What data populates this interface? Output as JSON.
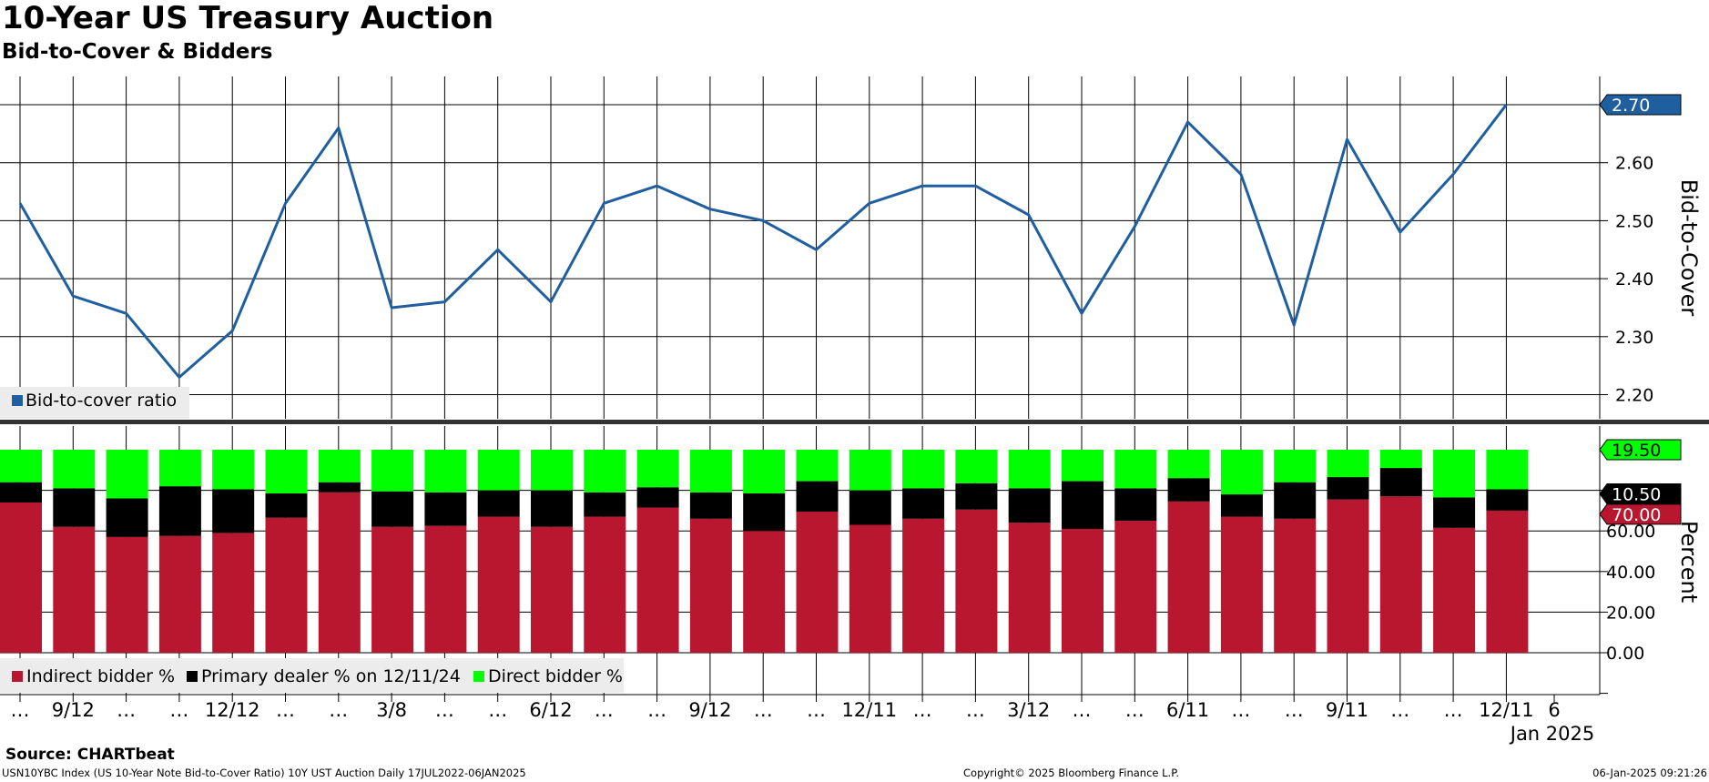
{
  "title": "10-Year US Treasury Auction",
  "subtitle": "Bid-to-Cover & Bidders",
  "source": "Source: CHARTbeat",
  "footer": {
    "left": "USN10YBC Index (US 10-Year Note Bid-to-Cover Ratio) 10Y UST Auction  Daily 17JUL2022-06JAN2025",
    "center": "Copyright© 2025 Bloomberg Finance L.P.",
    "right": "06-Jan-2025 09:21:26"
  },
  "colors": {
    "line": "#1f5fa0",
    "indirect": "#b8172f",
    "primary": "#000000",
    "direct": "#00ff00",
    "grid": "#000000",
    "legend_bg": "#ececec"
  },
  "chart_data": [
    {
      "type": "line",
      "ylabel": "Bid-to-Cover",
      "ylim": [
        2.15,
        2.72
      ],
      "yticks": [
        "2.20",
        "2.30",
        "2.40",
        "2.50",
        "2.60"
      ],
      "grid": true,
      "legend": "bottom-left",
      "series": [
        {
          "name": "Bid-to-cover ratio",
          "values": [
            2.53,
            2.37,
            2.34,
            2.23,
            2.31,
            2.53,
            2.66,
            2.35,
            2.36,
            2.45,
            2.36,
            2.53,
            2.56,
            2.52,
            2.5,
            2.45,
            2.53,
            2.56,
            2.56,
            2.51,
            2.34,
            2.49,
            2.67,
            2.58,
            2.32,
            2.64,
            2.48,
            2.58,
            2.7
          ]
        }
      ],
      "last_value_label": "2.70"
    },
    {
      "type": "bar",
      "stacked": true,
      "ylabel": "Percent",
      "ylim": [
        -20,
        103
      ],
      "yticks": [
        "0.00",
        "20.00",
        "40.00",
        "60.00"
      ],
      "grid": true,
      "legend": "bottom-left",
      "series": [
        {
          "name": "Indirect bidder %",
          "values": [
            74,
            62,
            57,
            57.5,
            59,
            66.5,
            79,
            62,
            62.5,
            67,
            62,
            67,
            71.5,
            66,
            60,
            69.5,
            63,
            66,
            70.5,
            64,
            61,
            65,
            74.5,
            67,
            66,
            75.5,
            77,
            61.5,
            70
          ]
        },
        {
          "name": "Primary dealer % on 12/11/24",
          "values": [
            10,
            19,
            19,
            24.5,
            21.5,
            12,
            5,
            17.5,
            16.5,
            13,
            18,
            12,
            10,
            13,
            18.5,
            15,
            17,
            15,
            13,
            17,
            23.5,
            16,
            11.5,
            11,
            18,
            11,
            14,
            15,
            10.5
          ]
        },
        {
          "name": "Direct bidder %",
          "values": [
            16,
            19,
            24,
            18,
            19.5,
            21.5,
            16,
            20.5,
            21,
            20,
            20,
            21,
            18.5,
            21,
            21.5,
            15.5,
            20,
            19,
            16.5,
            19,
            15.5,
            19,
            14,
            22,
            16,
            13.5,
            9,
            23.5,
            19.5
          ]
        }
      ],
      "last_value_labels": [
        "19.50",
        "10.50",
        "70.00"
      ]
    }
  ],
  "x_axis": {
    "labels": [
      "…",
      "9/12",
      "…",
      "…",
      "12/12",
      "…",
      "…",
      "3/8",
      "…",
      "…",
      "6/12",
      "…",
      "…",
      "9/12",
      "…",
      "…",
      "12/11",
      "…",
      "…",
      "3/12",
      "…",
      "…",
      "6/11",
      "…",
      "…",
      "9/11",
      "…",
      "…",
      "12/11",
      "6"
    ],
    "year_label": "Jan 2025"
  }
}
